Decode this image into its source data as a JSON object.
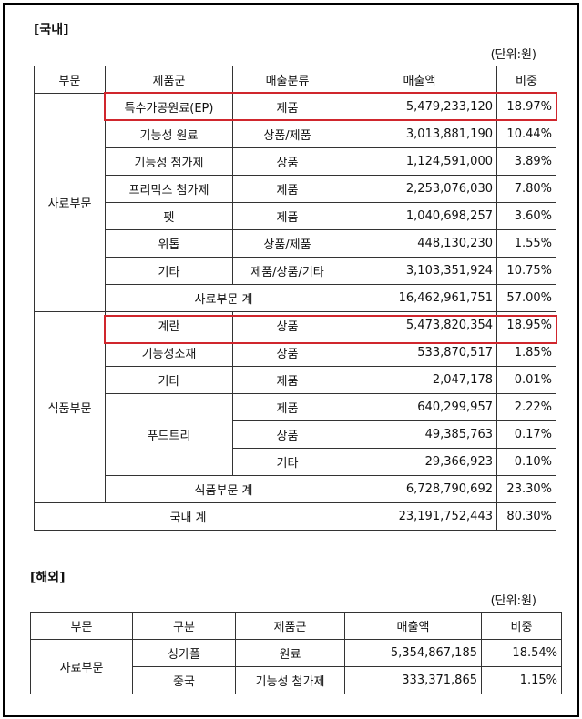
{
  "domestic": {
    "title": "[국내]",
    "unit": "(단위:원)",
    "header": [
      "부문",
      "제품군",
      "매출분류",
      "매출액",
      "비중"
    ],
    "feed": {
      "label": "사료부문",
      "rows": [
        [
          "특수가공원료(EP)",
          "제품",
          "5,479,233,120",
          "18.97%"
        ],
        [
          "기능성 원료",
          "상품/제품",
          "3,013,881,190",
          "10.44%"
        ],
        [
          "기능성 첨가제",
          "상품",
          "1,124,591,000",
          "3.89%"
        ],
        [
          "프리믹스 첨가제",
          "제품",
          "2,253,076,030",
          "7.80%"
        ],
        [
          "펫",
          "제품",
          "1,040,698,257",
          "3.60%"
        ],
        [
          "위톱",
          "상품/제품",
          "448,130,230",
          "1.55%"
        ],
        [
          "기타",
          "제품/상품/기타",
          "3,103,351,924",
          "10.75%"
        ]
      ],
      "subtotal": [
        "사료부문 계",
        "16,462,961,751",
        "57.00%"
      ]
    },
    "food": {
      "label": "식품부문",
      "rows": [
        [
          "계란",
          "상품",
          "5,473,820,354",
          "18.95%"
        ],
        [
          "기능성소재",
          "상품",
          "533,870,517",
          "1.85%"
        ],
        [
          "기타",
          "제품",
          "2,047,178",
          "0.01%"
        ]
      ],
      "foodtree": {
        "label": "푸드트리",
        "rows": [
          [
            "제품",
            "640,299,957",
            "2.22%"
          ],
          [
            "상품",
            "49,385,763",
            "0.17%"
          ],
          [
            "기타",
            "29,366,923",
            "0.10%"
          ]
        ]
      },
      "subtotal": [
        "식품부문 계",
        "6,728,790,692",
        "23.30%"
      ]
    },
    "total": [
      "국내 계",
      "23,191,752,443",
      "80.30%"
    ]
  },
  "overseas": {
    "title": "[해외]",
    "unit": "(단위:원)",
    "header": [
      "부문",
      "구분",
      "제품군",
      "매출액",
      "비중"
    ],
    "segment": "사료부문",
    "rows": [
      [
        "싱가폴",
        "원료",
        "5,354,867,185",
        "18.54%"
      ],
      [
        "중국",
        "기능성 첨가제",
        "333,371,865",
        "1.15%"
      ]
    ]
  }
}
